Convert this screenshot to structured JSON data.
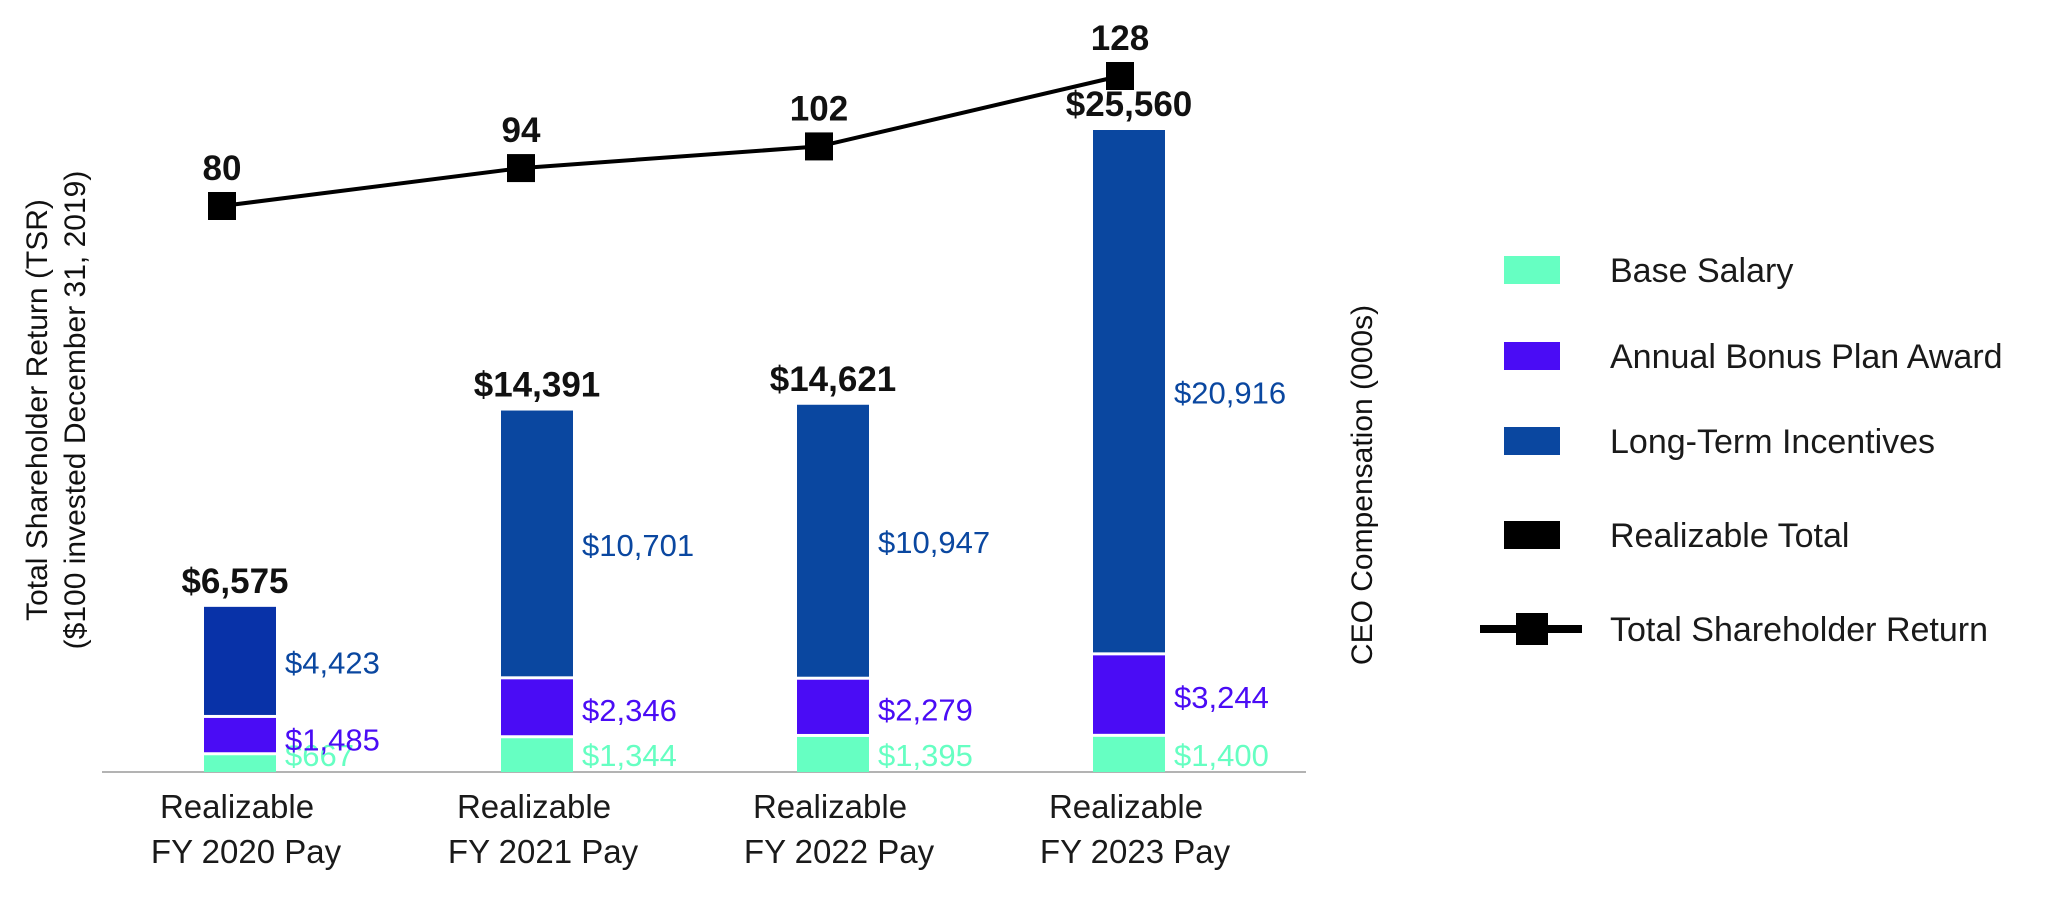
{
  "chart_data": {
    "type": "bar",
    "stacked": true,
    "categories": [
      "Realizable FY 2020 Pay",
      "Realizable FY 2021 Pay",
      "Realizable FY 2022 Pay",
      "Realizable FY 2023 Pay"
    ],
    "category_lines": [
      [
        "Realizable",
        "FY 2020 Pay"
      ],
      [
        "Realizable",
        "FY 2021 Pay"
      ],
      [
        "Realizable",
        "FY 2022 Pay"
      ],
      [
        "Realizable",
        "FY 2023 Pay"
      ]
    ],
    "series": [
      {
        "name": "Base Salary",
        "color": "#66FFC2",
        "values": [
          667,
          1344,
          1395,
          1400
        ],
        "labels": [
          "$667",
          "$1,344",
          "$1,395",
          "$1,400"
        ]
      },
      {
        "name": "Annual Bonus Plan Award",
        "color": "#4A0CF5",
        "values": [
          1485,
          2346,
          2279,
          3244
        ],
        "labels": [
          "$1,485",
          "$2,346",
          "$2,279",
          "$3,244"
        ]
      },
      {
        "name": "Long-Term Incentives",
        "color": "#0A47A0",
        "values": [
          4423,
          10701,
          10947,
          20916
        ],
        "labels": [
          "$4,423",
          "$10,701",
          "$10,947",
          "$20,916"
        ]
      }
    ],
    "lti_first_color": "#0832A8",
    "totals": {
      "name": "Realizable Total",
      "values": [
        6575,
        14391,
        14621,
        25560
      ],
      "labels": [
        "$6,575",
        "$14,391",
        "$14,621",
        "$25,560"
      ]
    },
    "line_series": {
      "name": "Total Shareholder Return",
      "values": [
        80,
        94,
        102,
        128
      ],
      "labels": [
        "80",
        "94",
        "102",
        "128"
      ],
      "color": "#000000"
    },
    "y_left_label_lines": [
      "Total Shareholder Return (TSR)",
      "($100 invested December 31, 2019)"
    ],
    "y_right_label": "CEO Compensation (000s)",
    "legend": {
      "position": "right",
      "items": [
        {
          "label": "Base Salary",
          "color": "#66FFC2",
          "kind": "box"
        },
        {
          "label": "Annual Bonus Plan Award",
          "color": "#4A0CF5",
          "kind": "box"
        },
        {
          "label": "Long-Term Incentives",
          "color": "#0A47A0",
          "kind": "box"
        },
        {
          "label": "Realizable Total",
          "color": "#000000",
          "kind": "box"
        },
        {
          "label": "Total Shareholder Return",
          "color": "#000000",
          "kind": "line-marker"
        }
      ]
    },
    "grid": false
  }
}
